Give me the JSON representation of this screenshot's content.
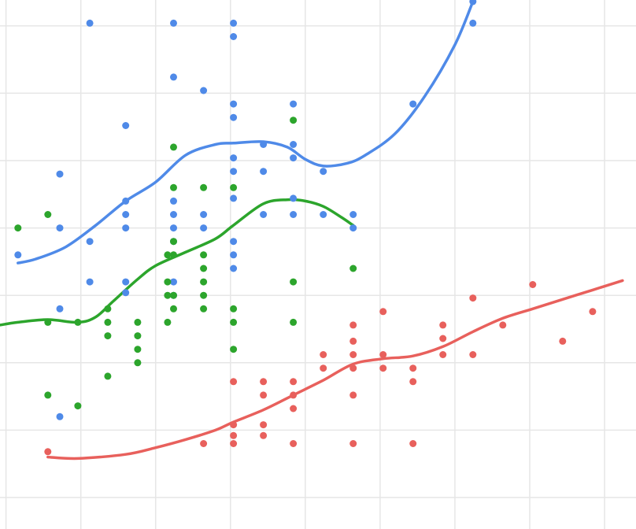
{
  "chart_data": {
    "type": "scatter",
    "title": "",
    "xlabel": "",
    "ylabel": "",
    "xlim": [
      0.8,
      22.05
    ],
    "ylim": [
      0,
      18.4
    ],
    "grid": true,
    "legend": "none",
    "series": [
      {
        "color": "#4f8ae8",
        "trend": "loess",
        "points": [
          [
            1.4,
            9
          ],
          [
            2.8,
            12
          ],
          [
            2.8,
            10
          ],
          [
            2.8,
            7
          ],
          [
            2.8,
            3
          ],
          [
            3.8,
            17.6
          ],
          [
            3.8,
            9.5
          ],
          [
            3.8,
            8
          ],
          [
            5,
            13.8
          ],
          [
            5,
            10.5
          ],
          [
            5,
            10
          ],
          [
            5,
            11
          ],
          [
            5,
            8
          ],
          [
            5,
            7.6
          ],
          [
            6.6,
            17.6
          ],
          [
            6.6,
            15.6
          ],
          [
            6.6,
            11
          ],
          [
            6.6,
            10.5
          ],
          [
            6.6,
            10
          ],
          [
            6.6,
            9.5
          ],
          [
            6.6,
            8
          ],
          [
            6.6,
            7.5
          ],
          [
            7.6,
            15.1
          ],
          [
            7.6,
            10.5
          ],
          [
            7.6,
            10
          ],
          [
            8.6,
            17.6
          ],
          [
            8.6,
            17.1
          ],
          [
            8.6,
            14.6
          ],
          [
            8.6,
            14.1
          ],
          [
            8.6,
            12.6
          ],
          [
            8.6,
            12.1
          ],
          [
            8.6,
            11.1
          ],
          [
            8.6,
            9.5
          ],
          [
            8.6,
            9
          ],
          [
            8.6,
            8.5
          ],
          [
            9.6,
            13.1
          ],
          [
            9.6,
            12.1
          ],
          [
            9.6,
            10.5
          ],
          [
            10.6,
            14.6
          ],
          [
            10.6,
            13.1
          ],
          [
            10.6,
            12.6
          ],
          [
            10.6,
            11.1
          ],
          [
            10.6,
            10.5
          ],
          [
            11.6,
            12.1
          ],
          [
            11.6,
            10.5
          ],
          [
            12.6,
            10.5
          ],
          [
            12.6,
            10
          ],
          [
            14.6,
            14.6
          ],
          [
            16.6,
            18.4
          ],
          [
            16.6,
            17.6
          ]
        ],
        "curve": [
          [
            1.4,
            8.7
          ],
          [
            2,
            8.85
          ],
          [
            3,
            9.3
          ],
          [
            4,
            10.1
          ],
          [
            5,
            11
          ],
          [
            6,
            11.7
          ],
          [
            7,
            12.7
          ],
          [
            8,
            13.1
          ],
          [
            8.6,
            13.15
          ],
          [
            9.6,
            13.2
          ],
          [
            10.4,
            13
          ],
          [
            11,
            12.55
          ],
          [
            11.6,
            12.3
          ],
          [
            12.4,
            12.4
          ],
          [
            13,
            12.7
          ],
          [
            14,
            13.5
          ],
          [
            15,
            14.9
          ],
          [
            16,
            16.8
          ],
          [
            16.6,
            18.4
          ]
        ]
      },
      {
        "color": "#2ca52c",
        "trend": "loess",
        "points": [
          [
            1.4,
            10
          ],
          [
            2.4,
            10.5
          ],
          [
            2.4,
            6.5
          ],
          [
            2.4,
            3.8
          ],
          [
            3.4,
            6.5
          ],
          [
            3.4,
            3.4
          ],
          [
            4.4,
            7
          ],
          [
            4.4,
            6.5
          ],
          [
            4.4,
            6
          ],
          [
            4.4,
            4.5
          ],
          [
            5.4,
            6.5
          ],
          [
            5.4,
            6
          ],
          [
            5.4,
            5.5
          ],
          [
            5.4,
            5
          ],
          [
            6.4,
            9
          ],
          [
            6.4,
            8
          ],
          [
            6.4,
            7.5
          ],
          [
            6.4,
            6.5
          ],
          [
            6.6,
            13
          ],
          [
            6.6,
            11.5
          ],
          [
            6.6,
            9.5
          ],
          [
            6.6,
            9
          ],
          [
            6.6,
            7.5
          ],
          [
            6.6,
            7
          ],
          [
            7.6,
            11.5
          ],
          [
            7.6,
            9
          ],
          [
            7.6,
            8.5
          ],
          [
            7.6,
            8
          ],
          [
            7.6,
            7.5
          ],
          [
            7.6,
            7
          ],
          [
            8.6,
            11.5
          ],
          [
            8.6,
            7
          ],
          [
            8.6,
            6.5
          ],
          [
            8.6,
            5.5
          ],
          [
            10.6,
            14
          ],
          [
            10.6,
            8
          ],
          [
            10.6,
            6.5
          ],
          [
            12.6,
            8.5
          ]
        ],
        "curve": [
          [
            0.8,
            6.4
          ],
          [
            1.4,
            6.5
          ],
          [
            2.4,
            6.6
          ],
          [
            3.4,
            6.5
          ],
          [
            4,
            6.7
          ],
          [
            4.6,
            7.3
          ],
          [
            5.4,
            8.1
          ],
          [
            6,
            8.6
          ],
          [
            7,
            9.1
          ],
          [
            8,
            9.6
          ],
          [
            8.6,
            10.1
          ],
          [
            9.6,
            10.9
          ],
          [
            10.4,
            11.05
          ],
          [
            11,
            11
          ],
          [
            11.6,
            10.8
          ],
          [
            12.2,
            10.4
          ],
          [
            12.6,
            10.1
          ]
        ]
      },
      {
        "color": "#e8605c",
        "trend": "loess",
        "points": [
          [
            2.4,
            1.7
          ],
          [
            8.6,
            2.7
          ],
          [
            8.6,
            2
          ],
          [
            8.6,
            4.3
          ],
          [
            9.6,
            4.3
          ],
          [
            9.6,
            3.8
          ],
          [
            10.6,
            3.8
          ],
          [
            10.6,
            3.3
          ],
          [
            10.6,
            4.3
          ],
          [
            11.6,
            4.8
          ],
          [
            11.6,
            5.3
          ],
          [
            12.6,
            5.3
          ],
          [
            12.6,
            4.8
          ],
          [
            12.6,
            5.8
          ],
          [
            12.6,
            3.8
          ],
          [
            12.6,
            6.4
          ],
          [
            12.6,
            2
          ],
          [
            13.6,
            4.8
          ],
          [
            13.6,
            5.3
          ],
          [
            13.6,
            6.9
          ],
          [
            14.6,
            4.8
          ],
          [
            14.6,
            4.3
          ],
          [
            14.6,
            2
          ],
          [
            15.6,
            6.4
          ],
          [
            15.6,
            5.9
          ],
          [
            15.6,
            5.3
          ],
          [
            16.6,
            7.4
          ],
          [
            16.6,
            5.3
          ],
          [
            17.6,
            6.4
          ],
          [
            18.6,
            7.9
          ],
          [
            19.6,
            5.8
          ],
          [
            20.6,
            6.9
          ],
          [
            7.6,
            2
          ],
          [
            8.6,
            2.3
          ],
          [
            9.6,
            2.7
          ],
          [
            10.6,
            2
          ],
          [
            9.6,
            2.3
          ]
        ],
        "curve": [
          [
            2.4,
            1.5
          ],
          [
            3.4,
            1.45
          ],
          [
            5,
            1.6
          ],
          [
            6,
            1.85
          ],
          [
            7,
            2.15
          ],
          [
            8,
            2.5
          ],
          [
            8.6,
            2.8
          ],
          [
            9.6,
            3.25
          ],
          [
            10.6,
            3.8
          ],
          [
            11.6,
            4.35
          ],
          [
            12.6,
            4.95
          ],
          [
            13.6,
            5.15
          ],
          [
            14.6,
            5.25
          ],
          [
            15.6,
            5.6
          ],
          [
            16.6,
            6.15
          ],
          [
            17.6,
            6.65
          ],
          [
            18.6,
            7
          ],
          [
            19.6,
            7.35
          ],
          [
            20.6,
            7.7
          ],
          [
            21.6,
            8.05
          ]
        ]
      }
    ]
  }
}
